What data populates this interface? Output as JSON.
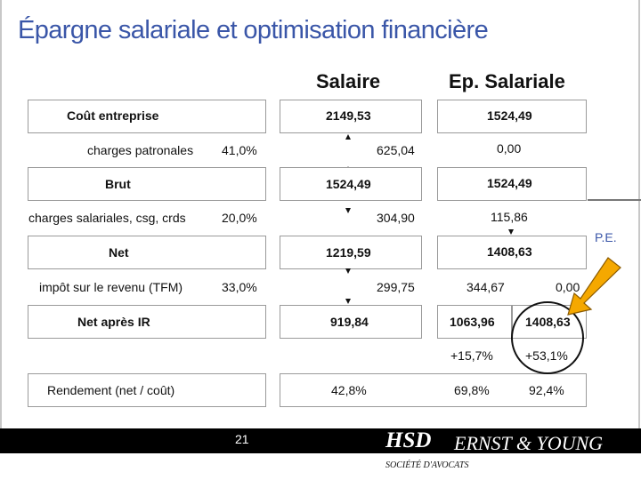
{
  "title": "Épargne salariale et optimisation financière",
  "columns": {
    "salaire": "Salaire",
    "ep_salariale": "Ep. Salariale"
  },
  "rows": {
    "cout_entreprise": {
      "label": "Coût entreprise",
      "salaire": "2149,53",
      "ep": "1524,49"
    },
    "charges_patronales": {
      "label": "charges patronales",
      "rate": "41,0%",
      "salaire": "625,04",
      "ep": "0,00"
    },
    "brut": {
      "label": "Brut",
      "salaire": "1524,49",
      "ep": "1524,49"
    },
    "charges_salariales": {
      "label": "charges salariales, csg, crds",
      "rate": "20,0%",
      "salaire": "304,90",
      "ep": "115,86"
    },
    "net": {
      "label": "Net",
      "salaire": "1219,59",
      "ep": "1408,63"
    },
    "impot": {
      "label": "impôt sur le revenu (TFM)",
      "rate": "33,0%",
      "salaire": "299,75",
      "ep_a": "344,67",
      "ep_b": "0,00"
    },
    "net_apres_ir": {
      "label": "Net après IR",
      "salaire": "919,84",
      "ep_a": "1063,96",
      "ep_b": "1408,63"
    },
    "gains": {
      "ep_a": "+15,7%",
      "ep_b": "+53,1%"
    },
    "rendement": {
      "label": "Rendement (net / coût)",
      "salaire": "42,8%",
      "ep_a": "69,8%",
      "ep_b": "92,4%"
    }
  },
  "annotation": {
    "label": "P.E.",
    "arrow_color": "#f5a800",
    "circle_color": "#111111"
  },
  "footer": {
    "page_number": "21",
    "logo_hsd": "HSD",
    "logo_ey": "ERNST & YOUNG",
    "logo_sub": "SOCIÉTÉ D'AVOCATS"
  },
  "colors": {
    "title": "#3a56a8",
    "box_border": "#9a9a9a",
    "footer_bg": "#000000"
  }
}
